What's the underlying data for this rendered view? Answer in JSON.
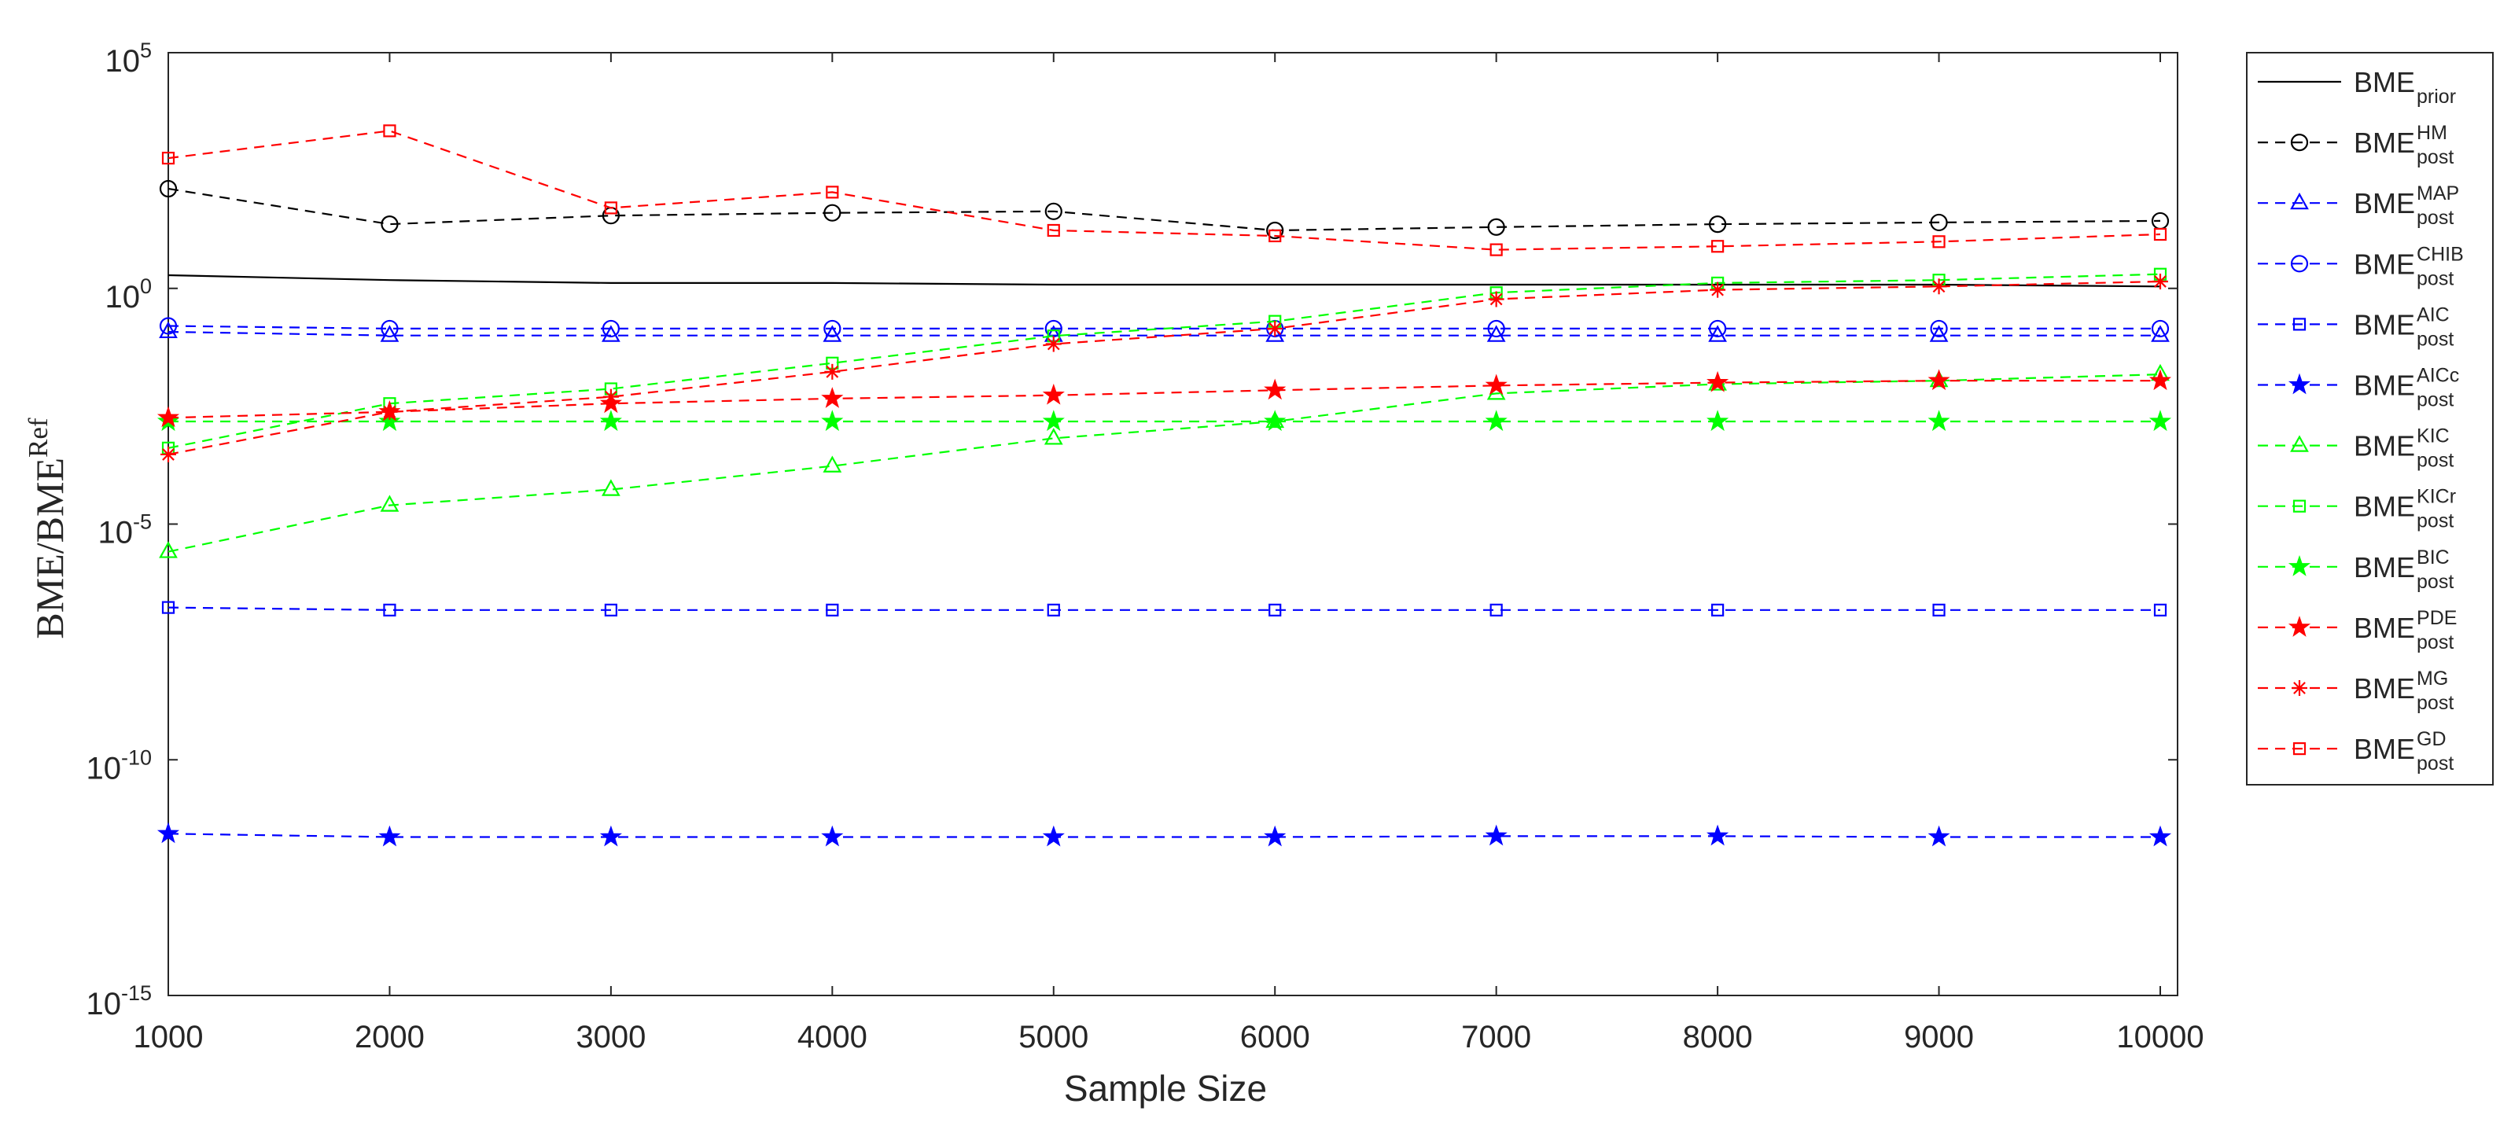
{
  "chart_data": {
    "type": "line",
    "title": "",
    "xlabel": "Sample Size",
    "ylabel": {
      "text": "BME/BME",
      "sup": "Ref"
    },
    "xscale": "linear",
    "yscale": "log",
    "xlim": [
      1000,
      10000
    ],
    "ylim": [
      1e-15,
      100000.0
    ],
    "grid": false,
    "legend_position": "outside-right",
    "xticks": [
      1000,
      2000,
      3000,
      4000,
      5000,
      6000,
      7000,
      8000,
      9000,
      10000
    ],
    "xtick_labels": [
      "1000",
      "2000",
      "3000",
      "4000",
      "5000",
      "6000",
      "7000",
      "8000",
      "9000",
      "10000"
    ],
    "yticks": [
      {
        "value": 100000.0,
        "base": "10",
        "exp": "5"
      },
      {
        "value": 1,
        "base": "10",
        "exp": "0"
      },
      {
        "value": 1e-05,
        "base": "10",
        "exp": "-5"
      },
      {
        "value": 1e-10,
        "base": "10",
        "exp": "-10"
      },
      {
        "value": 1e-15,
        "base": "10",
        "exp": "-15"
      }
    ],
    "x": [
      1000,
      2000,
      3000,
      4000,
      5000,
      6000,
      7000,
      8000,
      9000,
      10000
    ],
    "series": [
      {
        "label": {
          "base": "BME",
          "sub": "prior",
          "sup": ""
        },
        "color": "#000000",
        "linestyle": "-",
        "marker": "none",
        "values": [
          1.9,
          1.5,
          1.3,
          1.3,
          1.2,
          1.2,
          1.2,
          1.2,
          1.2,
          1.1
        ]
      },
      {
        "label": {
          "base": "BME",
          "sub": "post",
          "sup": "HM"
        },
        "color": "#000000",
        "linestyle": "--",
        "marker": "circle",
        "values": [
          130,
          23,
          35,
          40,
          43,
          17,
          20,
          23,
          25,
          27
        ]
      },
      {
        "label": {
          "base": "BME",
          "sub": "post",
          "sup": "MAP"
        },
        "color": "#0000ff",
        "linestyle": "--",
        "marker": "triangle",
        "values": [
          0.12,
          0.1,
          0.1,
          0.1,
          0.1,
          0.1,
          0.1,
          0.1,
          0.1,
          0.1
        ]
      },
      {
        "label": {
          "base": "BME",
          "sub": "post",
          "sup": "CHIB"
        },
        "color": "#0000ff",
        "linestyle": "--",
        "marker": "circle",
        "values": [
          0.16,
          0.14,
          0.14,
          0.14,
          0.14,
          0.14,
          0.14,
          0.14,
          0.14,
          0.14
        ]
      },
      {
        "label": {
          "base": "BME",
          "sub": "post",
          "sup": "AIC"
        },
        "color": "#0000ff",
        "linestyle": "--",
        "marker": "square",
        "values": [
          1.7e-07,
          1.5e-07,
          1.5e-07,
          1.5e-07,
          1.5e-07,
          1.5e-07,
          1.5e-07,
          1.5e-07,
          1.5e-07,
          1.5e-07
        ]
      },
      {
        "label": {
          "base": "BME",
          "sub": "post",
          "sup": "AICc"
        },
        "color": "#0000ff",
        "linestyle": "--",
        "marker": "pentagram",
        "values": [
          2.7e-12,
          2.3e-12,
          2.3e-12,
          2.3e-12,
          2.3e-12,
          2.3e-12,
          2.4e-12,
          2.4e-12,
          2.3e-12,
          2.3e-12
        ]
      },
      {
        "label": {
          "base": "BME",
          "sub": "post",
          "sup": "KIC"
        },
        "color": "#00ff00",
        "linestyle": "--",
        "marker": "triangle",
        "values": [
          2.6e-06,
          2.5e-05,
          5.4e-05,
          0.00017,
          0.00066,
          0.0015,
          0.0059,
          0.0093,
          0.011,
          0.015
        ]
      },
      {
        "label": {
          "base": "BME",
          "sub": "post",
          "sup": "KICr"
        },
        "color": "#00ff00",
        "linestyle": "--",
        "marker": "square",
        "values": [
          0.00041,
          0.0036,
          0.0074,
          0.026,
          0.098,
          0.2,
          0.81,
          1.3,
          1.5,
          2.0
        ]
      },
      {
        "label": {
          "base": "BME",
          "sub": "post",
          "sup": "BIC"
        },
        "color": "#00ff00",
        "linestyle": "--",
        "marker": "pentagram",
        "values": [
          0.0015,
          0.0015,
          0.0015,
          0.0015,
          0.0015,
          0.0015,
          0.0015,
          0.0015,
          0.0015,
          0.0015
        ]
      },
      {
        "label": {
          "base": "BME",
          "sub": "post",
          "sup": "PDE"
        },
        "color": "#ff0000",
        "linestyle": "--",
        "marker": "pentagram",
        "values": [
          0.0018,
          0.0024,
          0.0036,
          0.0046,
          0.0054,
          0.0069,
          0.0087,
          0.01,
          0.011,
          0.011
        ]
      },
      {
        "label": {
          "base": "BME",
          "sub": "post",
          "sup": "MG"
        },
        "color": "#ff0000",
        "linestyle": "--",
        "marker": "asterisk",
        "values": [
          0.0003,
          0.0024,
          0.005,
          0.017,
          0.066,
          0.14,
          0.59,
          0.93,
          1.1,
          1.4
        ]
      },
      {
        "label": {
          "base": "BME",
          "sub": "post",
          "sup": "GD"
        },
        "color": "#ff0000",
        "linestyle": "--",
        "marker": "square",
        "values": [
          580,
          2200,
          51,
          110,
          17,
          13,
          6.6,
          7.8,
          9.8,
          14
        ]
      }
    ]
  }
}
